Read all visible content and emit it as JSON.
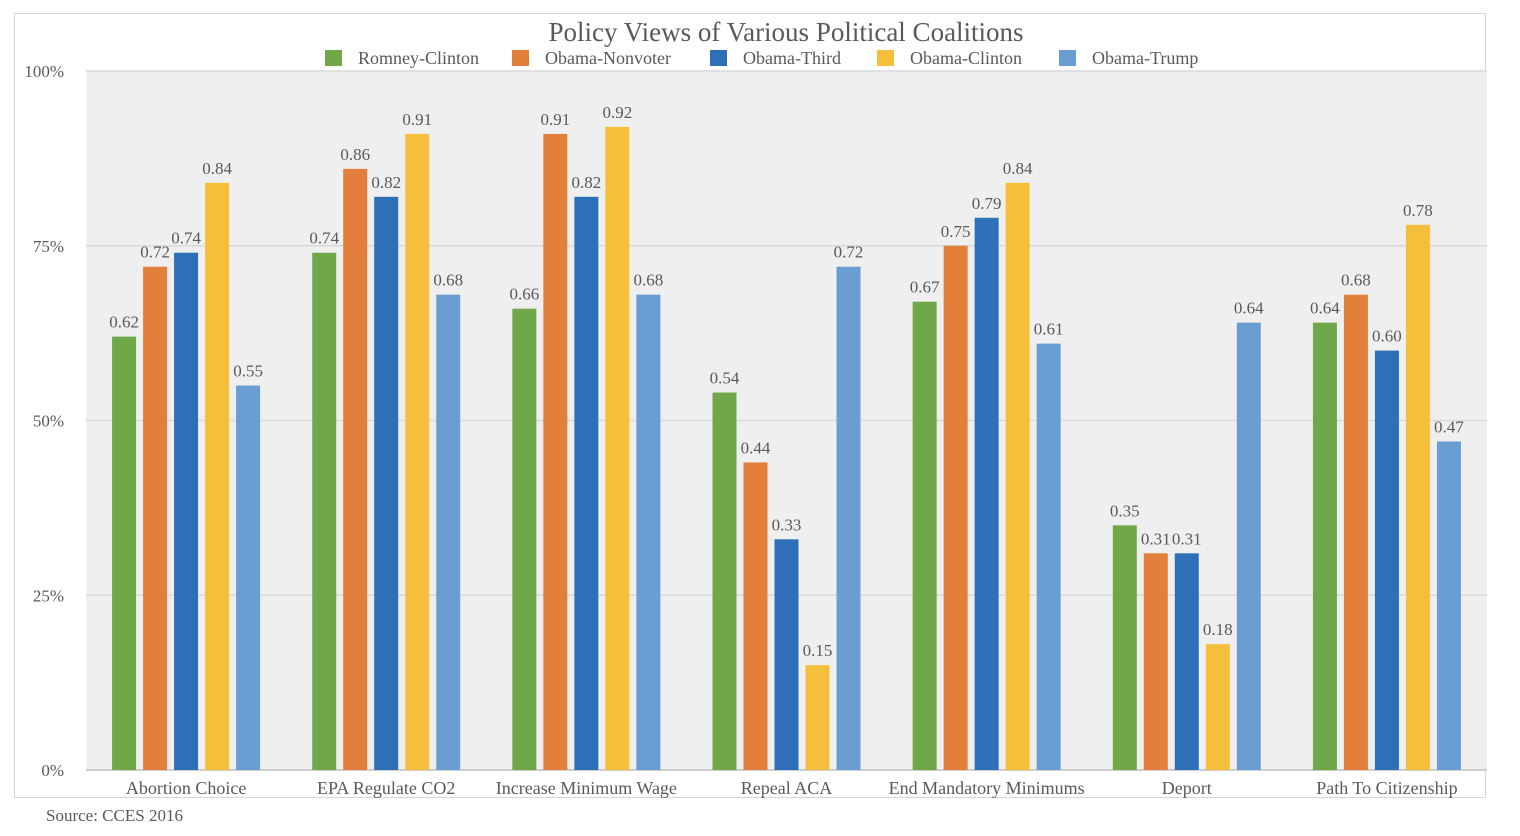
{
  "chart_data": {
    "type": "bar",
    "title": "Policy Views of Various Political Coalitions",
    "categories": [
      "Abortion Choice",
      "EPA Regulate CO2",
      "Increase Minimum Wage",
      "Repeal ACA",
      "End Mandatory Minimums",
      "Deport",
      "Path To Citizenship"
    ],
    "series": [
      {
        "name": "Romney-Clinton",
        "color": "#70a849",
        "values": [
          0.62,
          0.74,
          0.66,
          0.54,
          0.67,
          0.35,
          0.64
        ]
      },
      {
        "name": "Obama-Nonvoter",
        "color": "#e27f3a",
        "values": [
          0.72,
          0.86,
          0.91,
          0.44,
          0.75,
          0.31,
          0.68
        ]
      },
      {
        "name": "Obama-Third",
        "color": "#2e70b8",
        "values": [
          0.74,
          0.82,
          0.82,
          0.33,
          0.79,
          0.31,
          0.6
        ]
      },
      {
        "name": "Obama-Clinton",
        "color": "#f6bf3b",
        "values": [
          0.84,
          0.91,
          0.92,
          0.15,
          0.84,
          0.18,
          0.78
        ]
      },
      {
        "name": "Obama-Trump",
        "color": "#6a9ed3",
        "values": [
          0.55,
          0.68,
          0.68,
          0.72,
          0.61,
          0.64,
          0.47
        ]
      }
    ],
    "ylim": [
      0,
      1
    ],
    "yticks": [
      {
        "value": 0,
        "label": "0%"
      },
      {
        "value": 0.25,
        "label": "25%"
      },
      {
        "value": 0.5,
        "label": "50%"
      },
      {
        "value": 0.75,
        "label": "75%"
      },
      {
        "value": 1,
        "label": "100%"
      }
    ],
    "xlabel": "",
    "ylabel": "",
    "grid": true,
    "legend_position": "top-center",
    "value_label_format": "2-decimal",
    "colors": {
      "plot_background": "#efefef",
      "gridline": "#d9d9d9",
      "text": "#595959"
    }
  },
  "source_note": "Source: CCES 2016"
}
